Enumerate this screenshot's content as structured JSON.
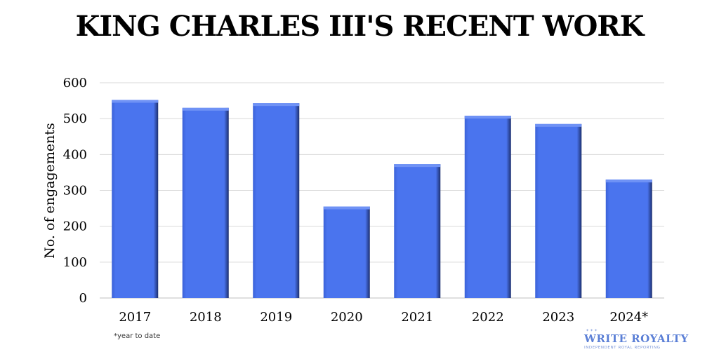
{
  "title": "KING CHARLES III'S RECENT WORK",
  "footnote": "*year to date",
  "brand": {
    "name": "WRITE ROYALTY",
    "tagline": "INDEPENDENT ROYAL REPORTING"
  },
  "colors": {
    "bar": "#4a74ee",
    "bar_dark": "#1d2f6e",
    "grid": "#d9d9d9"
  },
  "chart_data": {
    "type": "bar",
    "title": "KING CHARLES III'S RECENT WORK",
    "xlabel": "",
    "ylabel": "No. of engagements",
    "categories": [
      "2017",
      "2018",
      "2019",
      "2020",
      "2021",
      "2022",
      "2023",
      "2024*"
    ],
    "values": [
      552,
      530,
      543,
      255,
      373,
      508,
      485,
      330
    ],
    "ylim": [
      0,
      600
    ],
    "yticks": [
      0,
      100,
      200,
      300,
      400,
      500,
      600
    ],
    "grid": true,
    "legend": "none"
  }
}
